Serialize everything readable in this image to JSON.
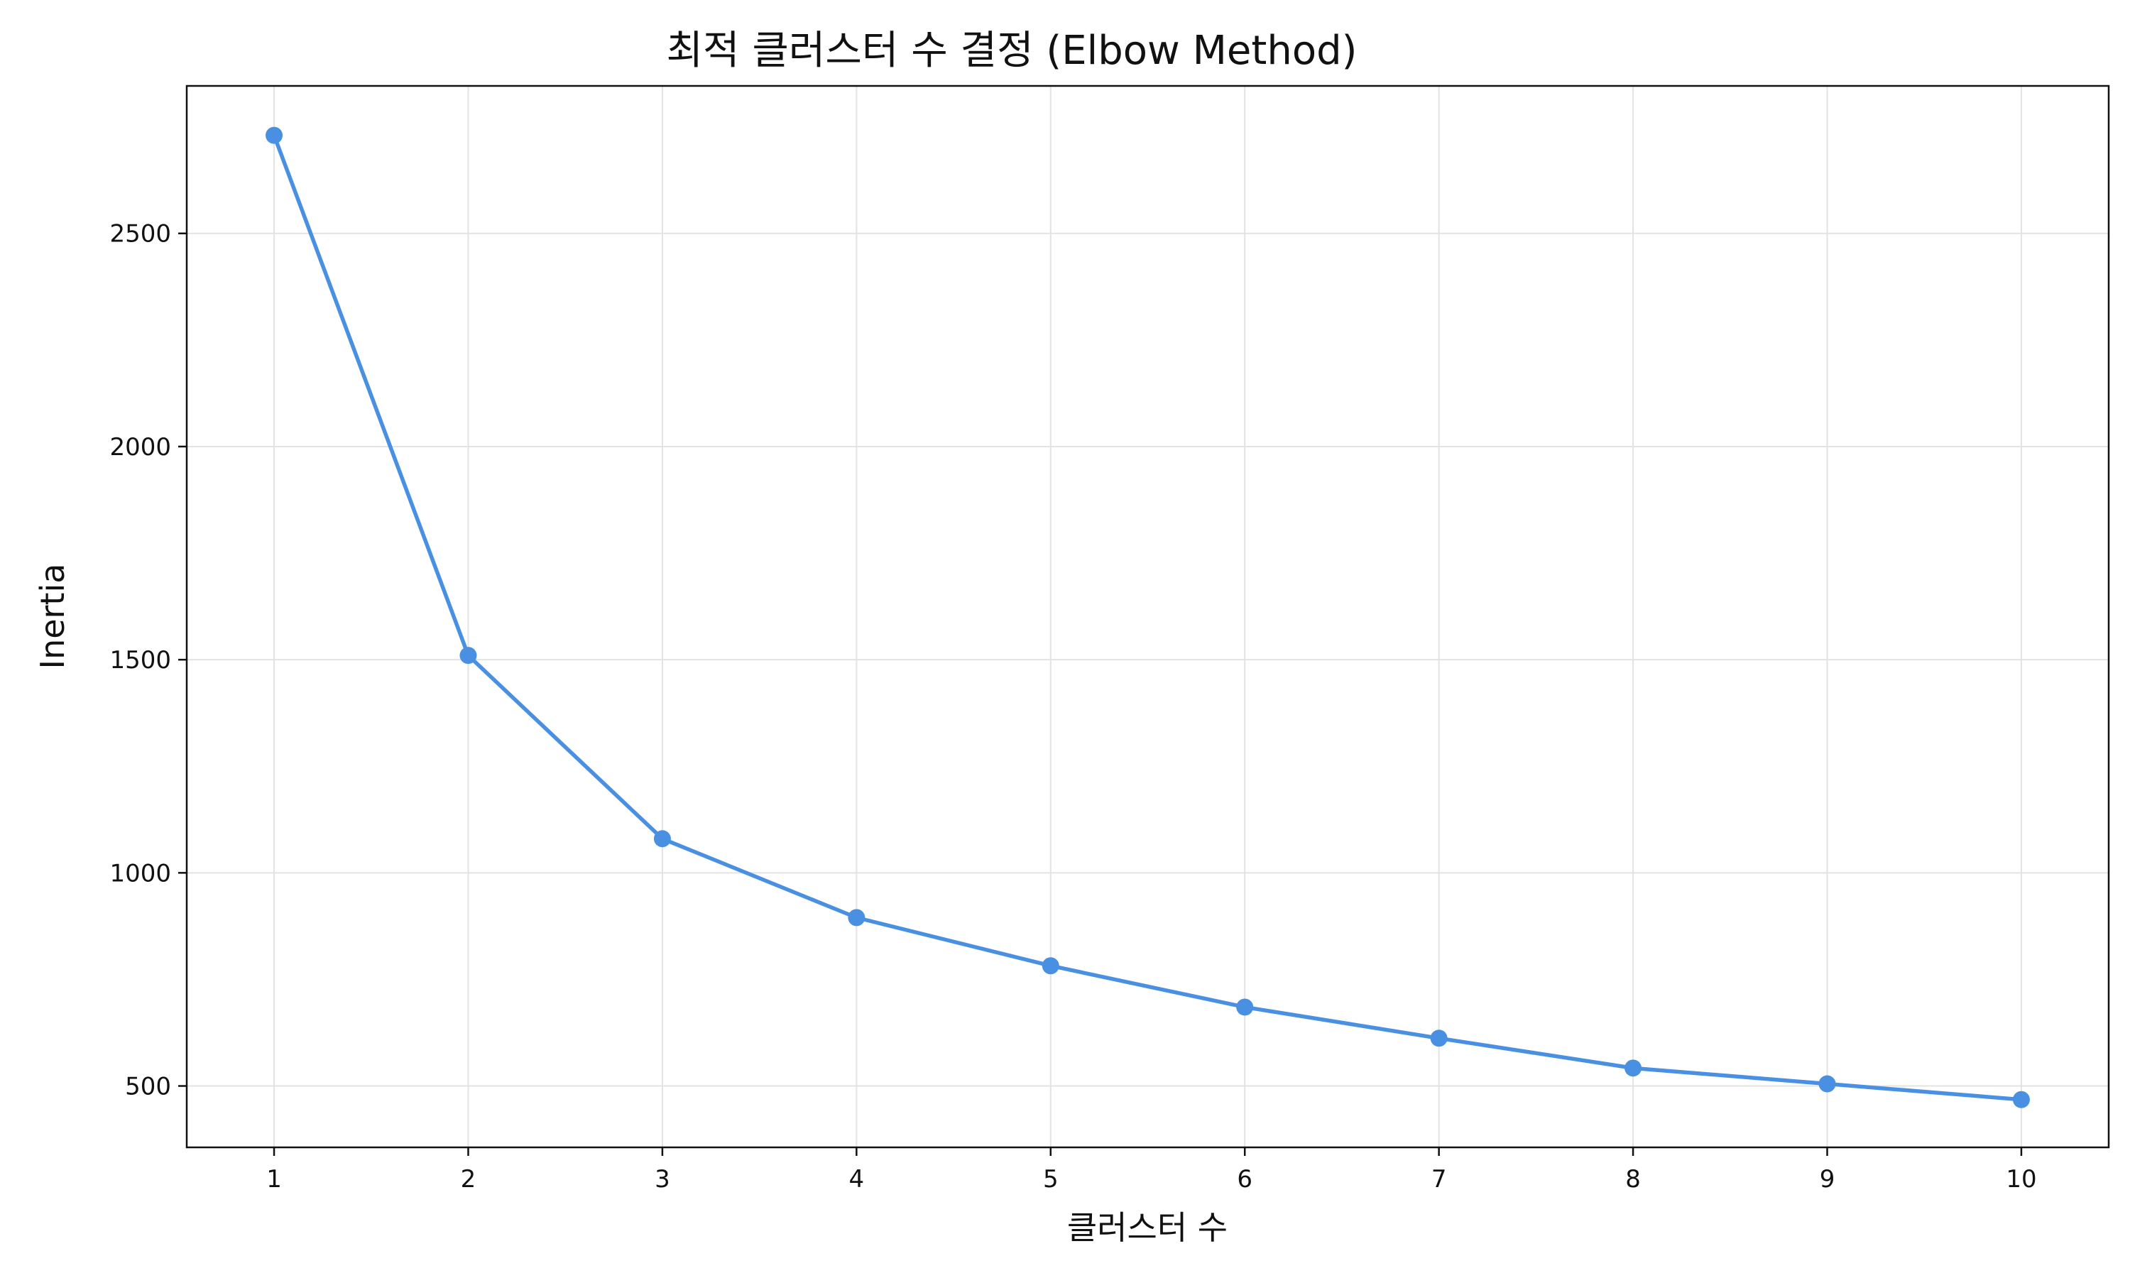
{
  "chart_data": {
    "type": "line",
    "title": "최적 클러스터 수 결정 (Elbow Method)",
    "xlabel": "클러스터 수",
    "ylabel": "Inertia",
    "x": [
      1,
      2,
      3,
      4,
      5,
      6,
      7,
      8,
      9,
      10
    ],
    "xticks": [
      "1",
      "2",
      "3",
      "4",
      "5",
      "6",
      "7",
      "8",
      "9",
      "10"
    ],
    "xlim": [
      0.55,
      10.45
    ],
    "ylim": [
      356,
      2846
    ],
    "yticks": [
      500,
      1000,
      1500,
      2000,
      2500
    ],
    "ytick_labels": [
      "500",
      "1000",
      "1500",
      "2000",
      "2500"
    ],
    "grid": true,
    "series": [
      {
        "values": [
          2730,
          1510,
          1080,
          895,
          782,
          685,
          612,
          542,
          505,
          468
        ],
        "color": "#4a90e2",
        "marker": "circle"
      }
    ]
  }
}
